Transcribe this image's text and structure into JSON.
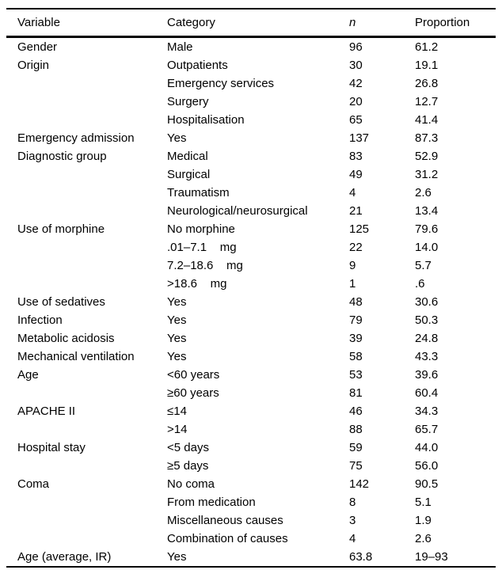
{
  "colors": {
    "text": "#000000",
    "background": "#ffffff",
    "rule": "#000000"
  },
  "table": {
    "headers": {
      "variable": "Variable",
      "category": "Category",
      "n": "n",
      "proportion": "Proportion"
    },
    "rows": [
      {
        "variable": "Gender",
        "category": "Male",
        "n": "96",
        "proportion": "61.2"
      },
      {
        "variable": "Origin",
        "category": "Outpatients",
        "n": "30",
        "proportion": "19.1"
      },
      {
        "variable": "",
        "category": "Emergency services",
        "n": "42",
        "proportion": "26.8"
      },
      {
        "variable": "",
        "category": "Surgery",
        "n": "20",
        "proportion": "12.7"
      },
      {
        "variable": "",
        "category": "Hospitalisation",
        "n": "65",
        "proportion": "41.4"
      },
      {
        "variable": "Emergency admission",
        "category": "Yes",
        "n": "137",
        "proportion": "87.3"
      },
      {
        "variable": "Diagnostic group",
        "category": "Medical",
        "n": "83",
        "proportion": "52.9"
      },
      {
        "variable": "",
        "category": "Surgical",
        "n": "49",
        "proportion": "31.2"
      },
      {
        "variable": "",
        "category": "Traumatism",
        "n": "4",
        "proportion": "2.6"
      },
      {
        "variable": "",
        "category": "Neurological/neurosurgical",
        "n": "21",
        "proportion": "13.4"
      },
      {
        "variable": "Use of morphine",
        "category": "No morphine",
        "n": "125",
        "proportion": "79.6"
      },
      {
        "variable": "",
        "category": ".01–7.1    mg",
        "n": "22",
        "proportion": "14.0"
      },
      {
        "variable": "",
        "category": "7.2–18.6    mg",
        "n": "9",
        "proportion": "5.7"
      },
      {
        "variable": "",
        "category": ">18.6    mg",
        "n": "1",
        "proportion": ".6"
      },
      {
        "variable": "Use of sedatives",
        "category": "Yes",
        "n": "48",
        "proportion": "30.6"
      },
      {
        "variable": "Infection",
        "category": "Yes",
        "n": "79",
        "proportion": "50.3"
      },
      {
        "variable": "Metabolic acidosis",
        "category": "Yes",
        "n": "39",
        "proportion": "24.8"
      },
      {
        "variable": "Mechanical ventilation",
        "category": "Yes",
        "n": "58",
        "proportion": "43.3"
      },
      {
        "variable": "Age",
        "category": "<60 years",
        "n": "53",
        "proportion": "39.6"
      },
      {
        "variable": "",
        "category": "≥60 years",
        "n": "81",
        "proportion": "60.4"
      },
      {
        "variable": "APACHE II",
        "category": "≤14",
        "n": "46",
        "proportion": "34.3"
      },
      {
        "variable": "",
        "category": ">14",
        "n": "88",
        "proportion": "65.7"
      },
      {
        "variable": "Hospital stay",
        "category": "<5 days",
        "n": "59",
        "proportion": "44.0"
      },
      {
        "variable": "",
        "category": "≥5 days",
        "n": "75",
        "proportion": "56.0"
      },
      {
        "variable": "Coma",
        "category": "No coma",
        "n": "142",
        "proportion": "90.5"
      },
      {
        "variable": "",
        "category": "From medication",
        "n": "8",
        "proportion": "5.1"
      },
      {
        "variable": "",
        "category": "Miscellaneous causes",
        "n": "3",
        "proportion": "1.9"
      },
      {
        "variable": "",
        "category": "Combination of causes",
        "n": "4",
        "proportion": "2.6"
      },
      {
        "variable": "Age (average, IR)",
        "category": "Yes",
        "n": "63.8",
        "proportion": "19–93"
      }
    ]
  }
}
